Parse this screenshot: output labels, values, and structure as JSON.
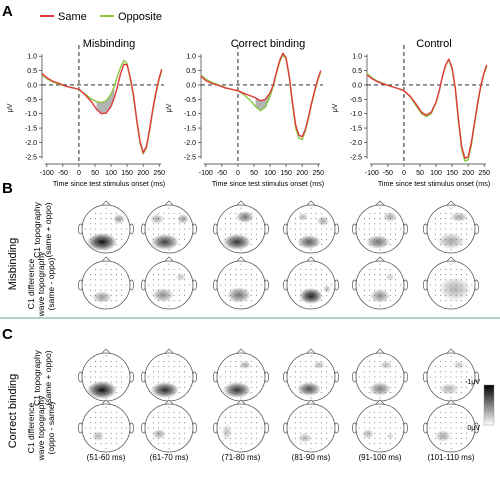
{
  "figure": {
    "panel_labels": [
      "A",
      "B",
      "C"
    ],
    "legend": {
      "items": [
        {
          "label": "Same",
          "color": "#e03a3a"
        },
        {
          "label": "Opposite",
          "color": "#8cc63f"
        }
      ]
    },
    "section_labels": [
      "Misbinding",
      "Correct binding"
    ],
    "row_labels": [
      [
        "C1 topography",
        "(same + oppo)"
      ],
      [
        "C1 difference",
        "wave topography",
        "(same - oppo)"
      ],
      [
        "C1 topography",
        "(same + oppo)"
      ],
      [
        "C1 difference",
        "wave topography",
        "(oppo - same)"
      ]
    ],
    "time_windows": [
      "(51-60 ms)",
      "(61-70 ms)",
      "(71-80 ms)",
      "(81-90 ms)",
      "(91-100 ms)",
      "(101-110 ms)"
    ],
    "colorbar": {
      "top_label": "-1μV",
      "bottom_label": "0μV"
    },
    "divider_color": "#7fb9a0"
  },
  "chart_data": [
    {
      "type": "line",
      "title": "Misbinding",
      "xlabel": "Time since test stimulus onset (ms)",
      "ylabel": "μV",
      "xlim": [
        -115,
        265
      ],
      "ylim": [
        -2.75,
        1.25
      ],
      "xticks": [
        -100,
        -50,
        0,
        50,
        100,
        150,
        200,
        250
      ],
      "yticks": [
        1.0,
        0.5,
        0.0,
        -0.5,
        -1.0,
        -1.5,
        -2.0,
        -2.5
      ],
      "ytick_labels": [
        "1.0",
        "0.5",
        "0.0",
        "-0.5",
        "-1.0",
        "-1.5",
        "-2.0",
        "-2.5"
      ],
      "shaded_interval": [
        50,
        110
      ],
      "x": [
        -115,
        -100,
        -80,
        -60,
        -40,
        -20,
        0,
        20,
        40,
        55,
        70,
        85,
        100,
        110,
        120,
        130,
        140,
        150,
        160,
        170,
        180,
        190,
        200,
        210,
        220,
        230,
        240,
        250,
        258
      ],
      "series": [
        {
          "name": "Same",
          "values": [
            0.4,
            0.25,
            0.12,
            0.05,
            -0.05,
            -0.1,
            -0.15,
            -0.35,
            -0.6,
            -0.85,
            -1.0,
            -0.98,
            -0.75,
            -0.45,
            -0.05,
            0.4,
            0.72,
            0.7,
            0.25,
            -0.35,
            -1.2,
            -1.95,
            -2.35,
            -2.15,
            -1.55,
            -0.85,
            -0.25,
            0.25,
            0.55
          ]
        },
        {
          "name": "Opposite",
          "values": [
            0.35,
            0.22,
            0.1,
            0.02,
            -0.05,
            -0.1,
            -0.15,
            -0.32,
            -0.5,
            -0.58,
            -0.62,
            -0.55,
            -0.32,
            -0.05,
            0.3,
            0.62,
            0.85,
            0.75,
            0.2,
            -0.4,
            -1.25,
            -2.0,
            -2.4,
            -2.2,
            -1.6,
            -0.9,
            -0.3,
            0.2,
            0.5
          ]
        }
      ]
    },
    {
      "type": "line",
      "title": "Correct binding",
      "xlabel": "Time since test stimulus onset (ms)",
      "ylabel": "μV",
      "xlim": [
        -115,
        265
      ],
      "ylim": [
        -2.75,
        1.25
      ],
      "xticks": [
        -100,
        -50,
        0,
        50,
        100,
        150,
        200,
        250
      ],
      "yticks": [
        1.0,
        0.5,
        0.0,
        -0.5,
        -1.0,
        -1.5,
        -2.0,
        -2.5
      ],
      "ytick_labels": [
        "1.0",
        "0.5",
        "0.0",
        "-0.5",
        "-1.0",
        "-1.5",
        "-2.0",
        "-2.5"
      ],
      "shaded_interval": [
        50,
        110
      ],
      "x": [
        -115,
        -100,
        -80,
        -60,
        -40,
        -20,
        0,
        20,
        40,
        55,
        70,
        85,
        100,
        110,
        120,
        130,
        140,
        150,
        160,
        170,
        180,
        190,
        200,
        210,
        220,
        230,
        240,
        250,
        258
      ],
      "series": [
        {
          "name": "Same",
          "values": [
            0.3,
            0.15,
            0.05,
            -0.02,
            -0.1,
            -0.15,
            -0.2,
            -0.3,
            -0.38,
            -0.45,
            -0.55,
            -0.5,
            -0.28,
            0.0,
            0.45,
            0.85,
            1.1,
            0.95,
            0.3,
            -0.6,
            -1.4,
            -1.75,
            -1.8,
            -1.55,
            -1.1,
            -0.6,
            -0.15,
            0.25,
            0.5
          ]
        },
        {
          "name": "Opposite",
          "values": [
            0.35,
            0.2,
            0.08,
            0.0,
            -0.1,
            -0.15,
            -0.2,
            -0.35,
            -0.55,
            -0.75,
            -0.9,
            -0.78,
            -0.4,
            -0.05,
            0.4,
            0.8,
            1.05,
            0.9,
            0.25,
            -0.7,
            -1.5,
            -1.85,
            -1.9,
            -1.6,
            -1.15,
            -0.65,
            -0.2,
            0.2,
            0.45
          ]
        }
      ]
    },
    {
      "type": "line",
      "title": "Control",
      "xlabel": "Time since test stimulus onset (ms)",
      "ylabel": "μV",
      "xlim": [
        -115,
        265
      ],
      "ylim": [
        -2.75,
        1.25
      ],
      "xticks": [
        -100,
        -50,
        0,
        50,
        100,
        150,
        200,
        250
      ],
      "yticks": [
        1.0,
        0.5,
        0.0,
        -0.5,
        -1.0,
        -1.5,
        -2.0,
        -2.5
      ],
      "ytick_labels": [
        "1.0",
        "0.5",
        "0.0",
        "-0.5",
        "-1.0",
        "-1.5",
        "-2.0",
        "-2.5"
      ],
      "x": [
        -115,
        -100,
        -80,
        -60,
        -40,
        -20,
        0,
        20,
        40,
        55,
        70,
        85,
        100,
        110,
        120,
        130,
        140,
        150,
        160,
        170,
        180,
        190,
        200,
        210,
        220,
        230,
        240,
        250,
        258
      ],
      "series": [
        {
          "name": "Same",
          "values": [
            0.35,
            0.22,
            0.1,
            0.02,
            -0.05,
            -0.12,
            -0.2,
            -0.4,
            -0.7,
            -0.95,
            -1.05,
            -0.95,
            -0.6,
            -0.2,
            0.3,
            0.7,
            0.9,
            0.6,
            -0.1,
            -1.2,
            -2.15,
            -2.55,
            -2.5,
            -2.0,
            -1.3,
            -0.6,
            0.0,
            0.45,
            0.7
          ]
        },
        {
          "name": "Opposite",
          "values": [
            0.4,
            0.25,
            0.12,
            0.03,
            -0.05,
            -0.12,
            -0.2,
            -0.42,
            -0.75,
            -1.0,
            -1.1,
            -1.0,
            -0.62,
            -0.22,
            0.28,
            0.68,
            0.88,
            0.55,
            -0.15,
            -1.3,
            -2.25,
            -2.65,
            -2.6,
            -2.1,
            -1.35,
            -0.65,
            -0.02,
            0.4,
            0.65
          ]
        }
      ]
    }
  ]
}
